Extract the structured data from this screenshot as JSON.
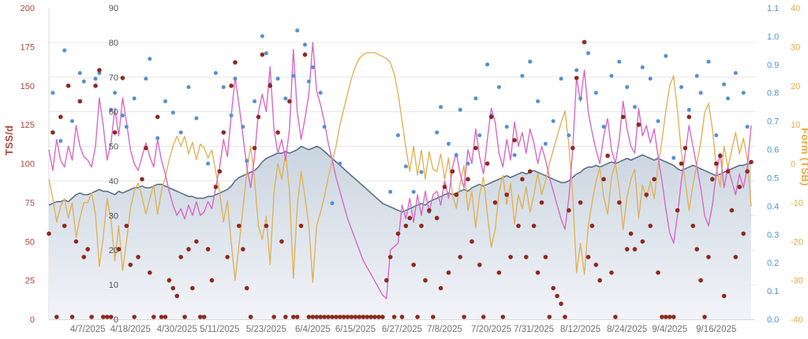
{
  "chart_data": {
    "type": "line",
    "title": "",
    "days": 182,
    "grid": "on",
    "legend": "none",
    "x_ticks": [
      {
        "day": 10,
        "label": "4/7/2025"
      },
      {
        "day": 21,
        "label": "4/18/2025"
      },
      {
        "day": 33,
        "label": "4/30/2025"
      },
      {
        "day": 44,
        "label": "5/11/2025"
      },
      {
        "day": 56,
        "label": "5/23/2025"
      },
      {
        "day": 68,
        "label": "6/4/2025"
      },
      {
        "day": 79,
        "label": "6/15/2025"
      },
      {
        "day": 91,
        "label": "6/27/2025"
      },
      {
        "day": 102,
        "label": "7/8/2025"
      },
      {
        "day": 114,
        "label": "7/20/2025"
      },
      {
        "day": 125,
        "label": "7/31/2025"
      },
      {
        "day": 137,
        "label": "8/12/2025"
      },
      {
        "day": 149,
        "label": "8/24/2025"
      },
      {
        "day": 160,
        "label": "9/4/2025"
      },
      {
        "day": 172,
        "label": "9/16/2025"
      }
    ],
    "axes": {
      "left_outer": {
        "title": "TSS/d",
        "color": "#b0453c",
        "min": 0,
        "max": 200,
        "step": 25
      },
      "left_inner": {
        "title": "",
        "color": "#4f5257",
        "min": 0,
        "max": 90,
        "step": 10
      },
      "right_inner": {
        "title": "",
        "color": "#4f94d4",
        "min": 0,
        "max": 1.1,
        "step": 0.1
      },
      "right_outer": {
        "title": "Form (TSB)",
        "color": "#eaa93d",
        "min": -40,
        "max": 40,
        "step": 10
      }
    },
    "series": [
      {
        "name": "fitness_area",
        "type": "area",
        "axis": "left_inner",
        "stroke": "#5d7085",
        "fill_top": "#c9d4df",
        "fill_bottom": "#f2f4f8",
        "values": [
          33,
          33.5,
          34,
          34,
          34.5,
          34,
          35,
          36,
          36.5,
          36,
          36,
          36.5,
          37,
          37.5,
          37,
          37,
          36.5,
          36,
          37,
          36.5,
          37,
          37.5,
          38,
          38,
          38.5,
          38,
          38,
          38.5,
          39,
          39,
          38.5,
          38,
          37.5,
          37,
          36.5,
          36,
          35.5,
          35.5,
          35,
          35,
          35,
          35.5,
          35.5,
          36,
          36.5,
          37,
          37.5,
          38.5,
          40,
          41,
          41.5,
          42,
          42.5,
          43,
          44,
          45.5,
          46.5,
          47,
          47.5,
          48,
          48,
          48.5,
          48,
          48.5,
          49,
          50,
          49.5,
          49,
          49.5,
          50,
          49.5,
          48.5,
          47.5,
          46.5,
          45.5,
          44.5,
          43.5,
          42.5,
          41.5,
          40.5,
          39.5,
          38.5,
          37.5,
          36.5,
          35.5,
          34.5,
          33.5,
          33,
          32.5,
          32,
          31.5,
          31,
          31.5,
          32,
          32.5,
          33,
          33.5,
          33,
          34,
          34.5,
          35,
          35.5,
          36,
          36.5,
          36,
          36.5,
          37,
          37.5,
          37,
          38,
          38.5,
          39,
          38.5,
          39,
          39.5,
          40,
          40.5,
          41,
          41.5,
          41,
          41.5,
          42,
          42.5,
          42,
          42.5,
          43,
          42.5,
          42,
          41.5,
          41,
          40.5,
          40,
          39.5,
          39.5,
          40,
          41,
          42,
          42.5,
          43.5,
          44,
          44,
          44.5,
          44,
          44.5,
          45,
          45.5,
          45,
          45.5,
          46,
          46.5,
          46,
          46.5,
          47,
          47.5,
          47,
          46.5,
          46,
          46.5,
          46,
          45.5,
          45,
          44.5,
          43.5,
          43,
          43.5,
          44,
          44.5,
          44,
          43.5,
          43,
          42.5,
          42,
          41.5,
          42,
          42.5,
          43,
          43.5,
          44,
          44.5,
          44.5,
          45,
          45
        ]
      },
      {
        "name": "fatigue_line",
        "type": "line",
        "axis": "left_inner",
        "stroke": "#d869c6",
        "values": [
          49,
          43,
          52,
          46,
          44,
          50,
          46,
          56,
          50,
          47,
          46,
          44,
          50,
          64,
          56,
          46,
          51,
          61,
          53,
          64,
          57,
          49,
          45,
          43,
          47,
          51,
          47,
          44,
          52,
          46,
          42,
          37,
          33,
          30,
          32,
          29,
          33,
          30,
          34,
          30,
          31,
          34,
          32,
          38,
          44,
          52,
          47,
          59,
          70,
          62,
          53,
          44,
          38,
          47,
          60,
          65,
          60,
          73,
          55,
          48,
          52,
          46,
          55,
          78,
          60,
          52,
          58,
          65,
          80,
          66,
          62,
          57,
          51,
          46,
          41,
          37,
          33,
          29,
          26,
          23,
          20,
          17,
          15,
          13,
          11,
          9,
          7,
          6,
          20,
          21,
          22,
          33,
          29,
          35,
          28,
          36,
          30,
          37,
          31,
          36,
          37,
          33,
          40,
          35,
          44,
          48,
          42,
          38,
          49,
          45,
          55,
          47,
          42,
          52,
          61,
          57,
          48,
          44,
          52,
          46,
          57,
          50,
          54,
          48,
          55,
          51,
          45,
          50,
          46,
          41,
          37,
          33,
          29,
          26,
          35,
          49,
          70,
          63,
          72,
          60,
          54,
          49,
          45,
          53,
          58,
          49,
          45,
          52,
          63,
          55,
          50,
          48,
          61,
          53,
          56,
          51,
          55,
          47,
          40,
          32,
          25,
          22,
          30,
          40,
          48,
          56,
          50,
          44,
          38,
          30,
          27,
          33,
          42,
          48,
          38,
          44,
          40,
          36,
          42,
          38,
          44,
          56
        ]
      },
      {
        "name": "form_line",
        "type": "line",
        "axis": "right_outer",
        "stroke": "#e2b257",
        "values": [
          -4,
          -9,
          -15,
          -11,
          -9,
          -14,
          -10,
          -19,
          -14,
          -10,
          -10,
          -7.5,
          -13,
          -26.5,
          -19,
          -9,
          -14.5,
          -25,
          -16,
          -27.5,
          -20,
          -11.5,
          -7,
          -5,
          -8.5,
          -13,
          -9,
          -5.5,
          -13,
          -7,
          -3.5,
          1,
          4.5,
          7,
          4.5,
          7,
          2.5,
          5.5,
          1,
          5,
          4,
          1.5,
          3.5,
          -2,
          -7.5,
          -15,
          -9.5,
          -20.5,
          -30,
          -21,
          -11.5,
          -2,
          4.5,
          -4,
          -16,
          -19.5,
          -13.5,
          -26,
          -7.5,
          0,
          -4,
          2.5,
          -7,
          -29.5,
          -11,
          -2,
          -8.5,
          -16,
          -30.5,
          -16,
          -12.5,
          -8.5,
          -3.5,
          0.5,
          4.5,
          10,
          14,
          18,
          22,
          25,
          27,
          28,
          28.5,
          28.5,
          28.5,
          28,
          27.5,
          27,
          26,
          23,
          18,
          11,
          4,
          -2,
          4.5,
          -3,
          3.5,
          -4,
          3,
          -1.5,
          -2,
          2.5,
          -4,
          1.5,
          -8,
          -11.5,
          -5,
          -0.5,
          -12,
          -7,
          -16.5,
          -8,
          -3.5,
          -13,
          -21.5,
          -17,
          -7.5,
          -3,
          -10.5,
          -5,
          -15.5,
          -8,
          -11.5,
          -6,
          -12.5,
          -8,
          -2.5,
          -8,
          -4.5,
          0,
          3.5,
          7,
          10.5,
          13.5,
          5,
          -8,
          -28,
          -20.5,
          -28.5,
          -16,
          -10,
          -4.5,
          -1,
          -8.5,
          -13,
          -3.5,
          0,
          -6.5,
          -17,
          -8.5,
          -4,
          -1.5,
          -14,
          -5.5,
          -9,
          -4.5,
          -9,
          -0.5,
          6,
          13.5,
          20,
          22.5,
          13.5,
          3,
          -4.5,
          -12,
          -5.5,
          0,
          5.5,
          13,
          15.5,
          9,
          -0.5,
          -6,
          4.5,
          -1,
          3.5,
          8,
          2.5,
          6.5,
          1,
          -11
        ]
      },
      {
        "name": "tss_dots",
        "type": "scatter",
        "axis": "left_outer",
        "fill": "#8f291f",
        "values": [
          55,
          120,
          0,
          130,
          60,
          150,
          0,
          50,
          140,
          40,
          45,
          0,
          150,
          160,
          0,
          0,
          0,
          120,
          45,
          155,
          60,
          35,
          0,
          40,
          90,
          110,
          30,
          0,
          130,
          0,
          0,
          25,
          20,
          15,
          40,
          0,
          45,
          20,
          50,
          0,
          0,
          45,
          25,
          85,
          95,
          120,
          40,
          150,
          165,
          60,
          45,
          20,
          0,
          110,
          130,
          170,
          60,
          150,
          0,
          120,
          50,
          0,
          140,
          0,
          0,
          60,
          170,
          0,
          0,
          0,
          0,
          0,
          0,
          0,
          0,
          0,
          0,
          0,
          0,
          0,
          0,
          0,
          0,
          0,
          0,
          0,
          0,
          25,
          40,
          0,
          55,
          0,
          60,
          65,
          35,
          0,
          60,
          25,
          70,
          0,
          65,
          20,
          85,
          30,
          95,
          80,
          40,
          0,
          90,
          50,
          110,
          35,
          0,
          100,
          130,
          75,
          30,
          0,
          80,
          40,
          115,
          60,
          90,
          40,
          95,
          60,
          30,
          75,
          40,
          0,
          20,
          15,
          10,
          0,
          70,
          110,
          155,
          75,
          178,
          40,
          60,
          35,
          25,
          90,
          105,
          30,
          0,
          75,
          130,
          45,
          55,
          45,
          125,
          50,
          80,
          60,
          90,
          30,
          0,
          0,
          0,
          0,
          70,
          100,
          110,
          130,
          60,
          45,
          25,
          0,
          40,
          90,
          100,
          105,
          15,
          95,
          70,
          40,
          85,
          55,
          95,
          101
        ]
      },
      {
        "name": "ratio_dots",
        "type": "scatter",
        "axis": "right_inner",
        "fill": "#568fd0",
        "points": [
          [
            1,
            0.8
          ],
          [
            3,
            0.63
          ],
          [
            4,
            0.95
          ],
          [
            6,
            0.7
          ],
          [
            8,
            0.87
          ],
          [
            9,
            0.84
          ],
          [
            12,
            0.85
          ],
          [
            13,
            0.87
          ],
          [
            16,
            0.74
          ],
          [
            17,
            0.8
          ],
          [
            19,
            0.72
          ],
          [
            20,
            0.68
          ],
          [
            22,
            0.78
          ],
          [
            25,
            0.85
          ],
          [
            26,
            0.92
          ],
          [
            28,
            0.64
          ],
          [
            30,
            0.77
          ],
          [
            32,
            0.73
          ],
          [
            34,
            0.66
          ],
          [
            36,
            0.82
          ],
          [
            38,
            0.71
          ],
          [
            41,
            0.55
          ],
          [
            43,
            0.87
          ],
          [
            45,
            0.82
          ],
          [
            47,
            0.72
          ],
          [
            48,
            0.85
          ],
          [
            50,
            0.68
          ],
          [
            51,
            0.56
          ],
          [
            53,
            0.77
          ],
          [
            55,
            1.0
          ],
          [
            56,
            0.94
          ],
          [
            57,
            0.83
          ],
          [
            59,
            0.85
          ],
          [
            61,
            0.78
          ],
          [
            63,
            0.86
          ],
          [
            64,
            1.02
          ],
          [
            66,
            0.97
          ],
          [
            67,
            0.84
          ],
          [
            68,
            0.89
          ],
          [
            70,
            0.8
          ],
          [
            71,
            0.68
          ],
          [
            73,
            0.41
          ],
          [
            75,
            0.55
          ],
          [
            88,
            0.45
          ],
          [
            90,
            0.65
          ],
          [
            92,
            0.54
          ],
          [
            94,
            0.45
          ],
          [
            96,
            0.52
          ],
          [
            98,
            0.38
          ],
          [
            100,
            0.66
          ],
          [
            101,
            0.75
          ],
          [
            103,
            0.62
          ],
          [
            105,
            0.58
          ],
          [
            106,
            0.74
          ],
          [
            108,
            0.55
          ],
          [
            110,
            0.78
          ],
          [
            111,
            0.65
          ],
          [
            113,
            0.9
          ],
          [
            114,
            0.72
          ],
          [
            116,
            0.82
          ],
          [
            118,
            0.68
          ],
          [
            120,
            0.58
          ],
          [
            122,
            0.86
          ],
          [
            124,
            0.91
          ],
          [
            126,
            0.77
          ],
          [
            128,
            0.62
          ],
          [
            130,
            0.7
          ],
          [
            132,
            0.85
          ],
          [
            134,
            0.65
          ],
          [
            136,
            0.88
          ],
          [
            137,
            0.78
          ],
          [
            139,
            0.94
          ],
          [
            141,
            0.8
          ],
          [
            143,
            0.68
          ],
          [
            145,
            0.86
          ],
          [
            147,
            0.91
          ],
          [
            149,
            0.82
          ],
          [
            151,
            0.75
          ],
          [
            153,
            0.89
          ],
          [
            155,
            0.85
          ],
          [
            157,
            0.7
          ],
          [
            159,
            0.93
          ],
          [
            161,
            0.57
          ],
          [
            163,
            0.82
          ],
          [
            165,
            0.74
          ],
          [
            167,
            0.86
          ],
          [
            168,
            0.8
          ],
          [
            170,
            0.91
          ],
          [
            172,
            0.65
          ],
          [
            174,
            0.83
          ],
          [
            175,
            0.78
          ],
          [
            177,
            0.87
          ],
          [
            179,
            0.8
          ],
          [
            180,
            0.68
          ]
        ]
      }
    ],
    "colors": {
      "grid": "#e6e6ea",
      "axis_line": "#d8d8dc",
      "x_label": "#707076"
    }
  }
}
